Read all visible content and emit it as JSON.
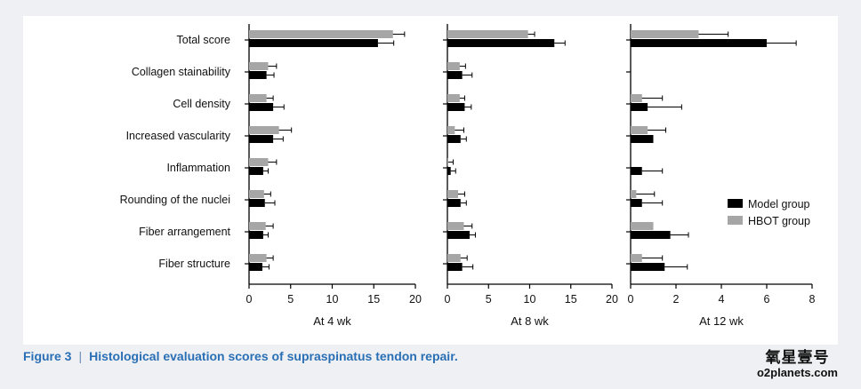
{
  "chart_data": {
    "type": "bar",
    "orientation": "horizontal",
    "categories": [
      "Total score",
      "Collagen stainability",
      "Cell density",
      "Increased vascularity",
      "Inflammation",
      "Rounding of the nuclei",
      "Fiber arrangement",
      "Fiber structure"
    ],
    "legend": {
      "placement": "right",
      "entries": [
        {
          "name": "Model group",
          "color": "#000000"
        },
        {
          "name": "HBOT group",
          "color": "#a6a6a6"
        }
      ]
    },
    "panels": [
      {
        "xlabel": "At 4 wk",
        "xlim": [
          0,
          20
        ],
        "ticks": [
          "0",
          "5",
          "10",
          "15",
          "20"
        ],
        "series": [
          {
            "name": "HBOT group",
            "values": [
              17.3,
              2.3,
              2.1,
              3.6,
              2.3,
              1.8,
              2.0,
              2.1
            ],
            "errors": [
              1.4,
              1.0,
              0.8,
              1.5,
              1.0,
              0.8,
              0.9,
              0.8
            ]
          },
          {
            "name": "Model group",
            "values": [
              15.5,
              2.1,
              2.9,
              2.9,
              1.7,
              1.9,
              1.7,
              1.6
            ],
            "errors": [
              1.9,
              0.9,
              1.3,
              1.2,
              0.6,
              1.2,
              0.6,
              0.8
            ]
          }
        ]
      },
      {
        "xlabel": "At 8 wk",
        "xlim": [
          0,
          20
        ],
        "ticks": [
          "0",
          "5",
          "10",
          "15",
          "20"
        ],
        "series": [
          {
            "name": "HBOT group",
            "values": [
              9.8,
              1.5,
              1.5,
              0.9,
              0.1,
              1.3,
              2.0,
              1.6
            ],
            "errors": [
              0.8,
              0.7,
              0.6,
              1.1,
              0.6,
              0.8,
              1.0,
              0.8
            ]
          },
          {
            "name": "Model group",
            "values": [
              13.0,
              1.8,
              2.1,
              1.6,
              0.4,
              1.6,
              2.7,
              1.8
            ],
            "errors": [
              1.3,
              1.2,
              0.8,
              0.7,
              0.6,
              0.7,
              0.7,
              1.3
            ]
          }
        ]
      },
      {
        "xlabel": "At 12 wk",
        "xlim": [
          0,
          8
        ],
        "ticks": [
          "0",
          "2",
          "4",
          "6",
          "8"
        ],
        "series": [
          {
            "name": "HBOT group",
            "values": [
              3.0,
              0.0,
              0.5,
              0.75,
              0.0,
              0.25,
              1.0,
              0.5
            ],
            "errors": [
              1.3,
              0.0,
              0.9,
              0.8,
              0.0,
              0.8,
              0.0,
              0.9
            ]
          },
          {
            "name": "Model group",
            "values": [
              6.0,
              0.0,
              0.75,
              1.0,
              0.5,
              0.5,
              1.75,
              1.5
            ],
            "errors": [
              1.3,
              0.0,
              1.5,
              0.0,
              0.9,
              0.9,
              0.8,
              1.0
            ]
          }
        ]
      }
    ]
  },
  "caption": {
    "figure_label": "Figure 3",
    "separator": "|",
    "text": "Histological evaluation scores of supraspinatus tendon repair."
  },
  "watermark": {
    "chinese": "氧星壹号",
    "site": "o2planets.com"
  }
}
